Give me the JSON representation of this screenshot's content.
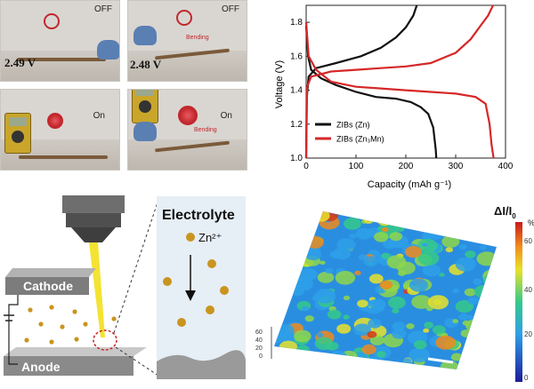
{
  "photos": {
    "top_left": {
      "state": "OFF",
      "voltage": "2.49 V"
    },
    "top_right": {
      "state": "OFF",
      "voltage": "2.48 V",
      "bend_label": "Bending"
    },
    "bottom_left": {
      "state": "On"
    },
    "bottom_right": {
      "state": "On",
      "bend_label": "Bending"
    }
  },
  "chart_data": {
    "type": "line",
    "xlabel": "Capacity (mAh g⁻¹)",
    "ylabel": "Voltage (V)",
    "xlim": [
      0,
      400
    ],
    "ylim": [
      1.0,
      1.9
    ],
    "xticks": [
      "0",
      "100",
      "200",
      "300",
      "400"
    ],
    "yticks": [
      "1.0",
      "1.2",
      "1.4",
      "1.6",
      "1.8"
    ],
    "legend_position": "bottom-left",
    "series": [
      {
        "name": "ZIBs (Zn)",
        "color": "#111111",
        "segments": [
          [
            [
              0,
              1.78
            ],
            [
              4,
              1.6
            ],
            [
              10,
              1.52
            ],
            [
              30,
              1.47
            ],
            [
              60,
              1.43
            ],
            [
              100,
              1.39
            ],
            [
              140,
              1.36
            ],
            [
              180,
              1.35
            ],
            [
              210,
              1.33
            ],
            [
              230,
              1.3
            ],
            [
              245,
              1.26
            ],
            [
              255,
              1.18
            ],
            [
              260,
              1.05
            ],
            [
              261,
              1.0
            ]
          ],
          [
            [
              0,
              1.0
            ],
            [
              1,
              1.35
            ],
            [
              5,
              1.48
            ],
            [
              20,
              1.53
            ],
            [
              60,
              1.56
            ],
            [
              110,
              1.6
            ],
            [
              150,
              1.65
            ],
            [
              180,
              1.71
            ],
            [
              200,
              1.77
            ],
            [
              215,
              1.84
            ],
            [
              222,
              1.9
            ]
          ]
        ]
      },
      {
        "name": "ZIBs (Zn₃Mn)",
        "color": "#d62728",
        "segments": [
          [
            [
              0,
              1.8
            ],
            [
              5,
              1.6
            ],
            [
              20,
              1.52
            ],
            [
              50,
              1.45
            ],
            [
              100,
              1.42
            ],
            [
              150,
              1.41
            ],
            [
              200,
              1.4
            ],
            [
              250,
              1.39
            ],
            [
              300,
              1.38
            ],
            [
              340,
              1.36
            ],
            [
              360,
              1.32
            ],
            [
              368,
              1.2
            ],
            [
              372,
              1.08
            ],
            [
              376,
              1.0
            ]
          ],
          [
            [
              0,
              1.0
            ],
            [
              2,
              1.42
            ],
            [
              10,
              1.48
            ],
            [
              50,
              1.51
            ],
            [
              100,
              1.52
            ],
            [
              150,
              1.53
            ],
            [
              200,
              1.54
            ],
            [
              250,
              1.56
            ],
            [
              300,
              1.62
            ],
            [
              330,
              1.7
            ],
            [
              350,
              1.78
            ],
            [
              365,
              1.84
            ],
            [
              375,
              1.9
            ]
          ]
        ]
      }
    ]
  },
  "schematic": {
    "electrolyte_label": "Electrolyte",
    "ion_label": "Zn²⁺",
    "cathode_label": "Cathode",
    "anode_label": "Anode"
  },
  "surface": {
    "colorbar_title": "ΔI/I",
    "colorbar_sub": "0",
    "colorbar_unit": "%",
    "colorbar_ticks": [
      "60",
      "40",
      "20",
      "0"
    ],
    "z_ticks": [
      "60",
      "40",
      "20",
      "0"
    ]
  }
}
